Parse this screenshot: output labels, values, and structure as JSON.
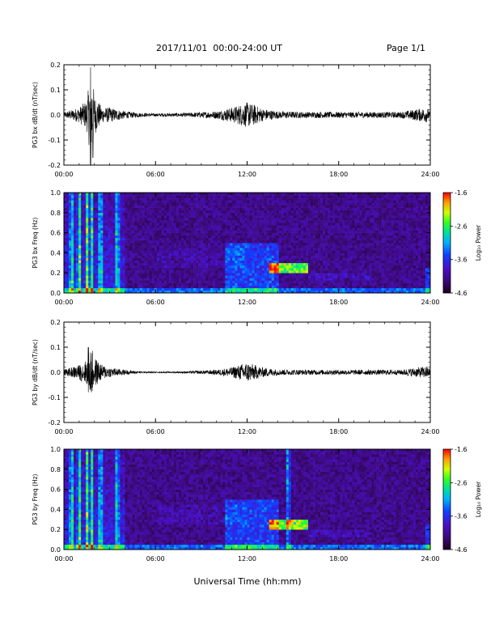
{
  "header": {
    "date_range": "2017/11/01  00:00-24:00 UT",
    "page": "Page 1/1"
  },
  "x_axis_title": "Universal Time (hh:mm)",
  "colors": {
    "trace": "#000000",
    "colormap": [
      "#2a0030",
      "#5a0aa8",
      "#2030ff",
      "#00c0ff",
      "#00e070",
      "#a0ff00",
      "#ffd000",
      "#ff6000",
      "#ff0000"
    ]
  },
  "chart_data": [
    {
      "type": "line",
      "ylabel": "PG3 bx dB/dt (nT/sec)",
      "xlim": [
        "00:00",
        "24:00"
      ],
      "ylim": [
        -0.2,
        0.2
      ],
      "x_ticks": [
        "00:00",
        "06:00",
        "12:00",
        "18:00",
        "24:00"
      ],
      "y_ticks": [
        "0.2",
        "0.1",
        "0.0",
        "-0.1",
        "-0.2"
      ],
      "series": [
        {
          "description_values_hours": [
            0,
            1,
            1.5,
            1.8,
            2.0,
            2.5,
            3,
            4,
            5,
            6,
            8,
            10,
            11,
            11.5,
            12,
            12.5,
            13,
            14,
            16,
            18,
            20,
            22,
            23.8,
            24
          ],
          "amplitude": [
            0.01,
            0.03,
            0.06,
            0.19,
            0.08,
            0.03,
            0.03,
            0.015,
            0.008,
            0.006,
            0.008,
            0.015,
            0.03,
            0.04,
            0.05,
            0.04,
            0.025,
            0.015,
            0.012,
            0.012,
            0.012,
            0.012,
            0.03,
            0.01
          ]
        }
      ]
    },
    {
      "type": "heatmap",
      "ylabel": "PG3 bx Freq (Hz)",
      "xlim": [
        "00:00",
        "24:00"
      ],
      "ylim": [
        0.0,
        1.0
      ],
      "x_ticks": [
        "00:00",
        "06:00",
        "12:00",
        "18:00",
        "24:00"
      ],
      "y_ticks": [
        "1.0",
        "0.8",
        "0.6",
        "0.4",
        "0.2",
        "0.0"
      ],
      "colorbar": {
        "label": "Log₁₀ Power",
        "ticks": [
          "-1.6",
          "-2.6",
          "-3.6",
          "-4.6"
        ],
        "range": [
          -4.6,
          -1.6
        ]
      },
      "features": {
        "broadband_bursts_hours": [
          0.5,
          1.0,
          1.5,
          1.8,
          2.4,
          3.5
        ],
        "enhanced_region_hours": [
          10.5,
          14.0
        ],
        "peak_band": {
          "hours": [
            13.5,
            16.0
          ],
          "freq_hz": [
            0.2,
            0.3
          ],
          "log_power": -2.0
        }
      }
    },
    {
      "type": "line",
      "ylabel": "PG3 by dB/dt (nT/sec)",
      "xlim": [
        "00:00",
        "24:00"
      ],
      "ylim": [
        -0.2,
        0.2
      ],
      "x_ticks": [
        "00:00",
        "06:00",
        "12:00",
        "18:00",
        "24:00"
      ],
      "y_ticks": [
        "0.2",
        "0.1",
        "0.0",
        "-0.1",
        "-0.2"
      ],
      "series": [
        {
          "description_values_hours": [
            0,
            1,
            1.5,
            1.8,
            2.0,
            2.5,
            3,
            4,
            5,
            6,
            8,
            10,
            11,
            11.5,
            12,
            12.5,
            13,
            14,
            16,
            18,
            20,
            22,
            23.8,
            24
          ],
          "amplitude": [
            0.01,
            0.03,
            0.05,
            0.1,
            0.06,
            0.03,
            0.02,
            0.01,
            0.004,
            0.002,
            0.004,
            0.01,
            0.02,
            0.03,
            0.04,
            0.03,
            0.02,
            0.012,
            0.01,
            0.01,
            0.01,
            0.01,
            0.025,
            0.01
          ]
        }
      ]
    },
    {
      "type": "heatmap",
      "ylabel": "PG3 by Freq (Hz)",
      "xlim": [
        "00:00",
        "24:00"
      ],
      "ylim": [
        0.0,
        1.0
      ],
      "x_ticks": [
        "00:00",
        "06:00",
        "12:00",
        "18:00",
        "24:00"
      ],
      "y_ticks": [
        "1.0",
        "0.8",
        "0.6",
        "0.4",
        "0.2",
        "0.0"
      ],
      "colorbar": {
        "label": "Log₁₀ Power",
        "ticks": [
          "-1.6",
          "-2.6",
          "-3.6",
          "-4.6"
        ],
        "range": [
          -4.6,
          -1.6
        ]
      },
      "features": {
        "broadband_bursts_hours": [
          0.5,
          1.0,
          1.5,
          1.8,
          2.4,
          3.5,
          14.7
        ],
        "enhanced_region_hours": [
          10.5,
          14.0
        ],
        "peak_band": {
          "hours": [
            13.5,
            16.0
          ],
          "freq_hz": [
            0.2,
            0.3
          ],
          "log_power": -2.0
        }
      }
    }
  ]
}
